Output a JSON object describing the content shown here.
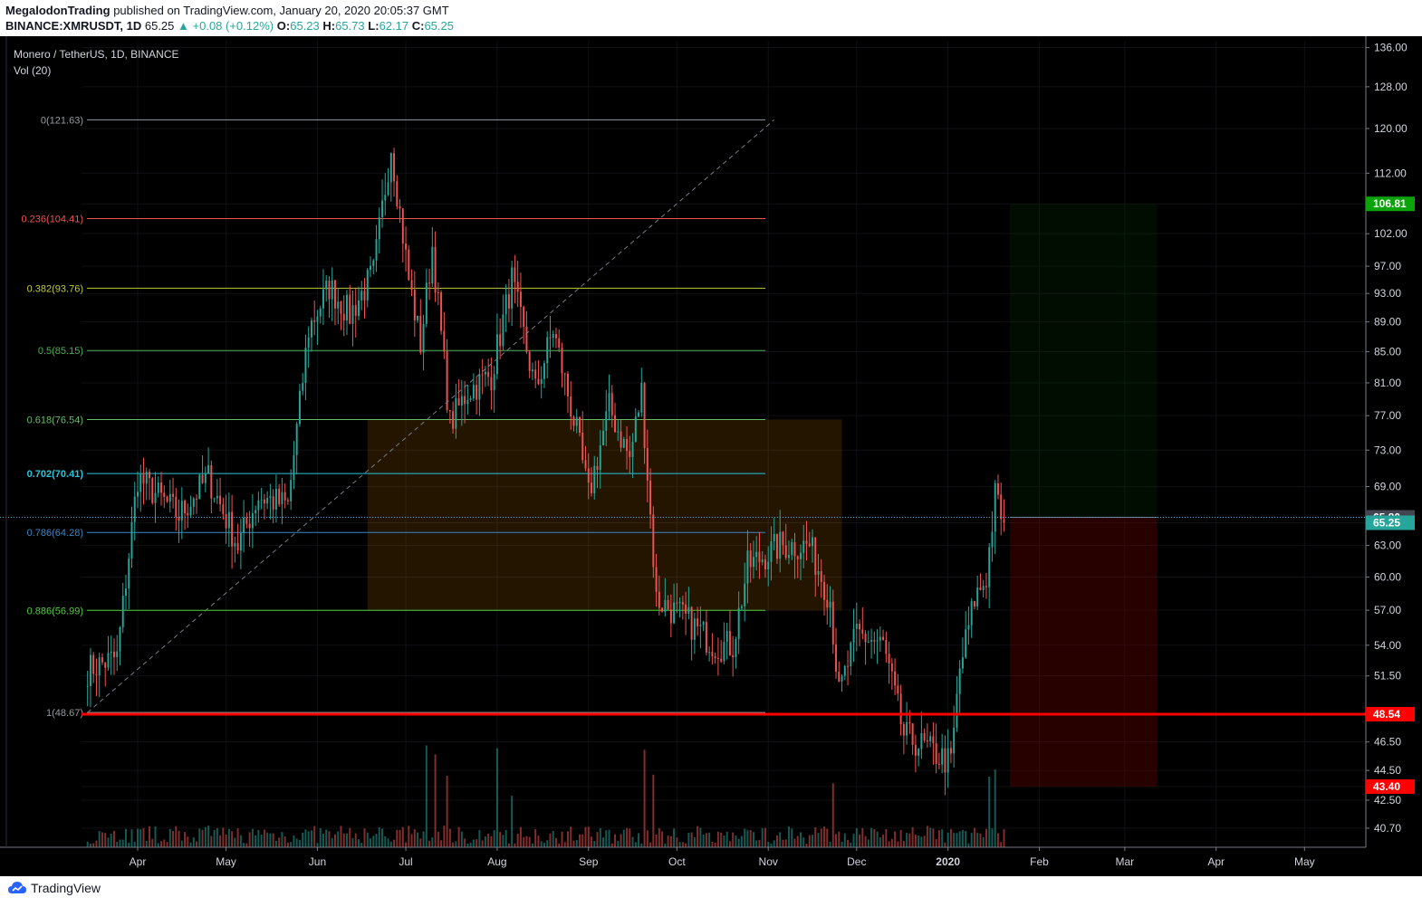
{
  "header": {
    "author": "MegalodonTrading",
    "published_text": "published on TradingView.com, January 20, 2020 20:05:37 GMT",
    "symbol": "BINANCE:XMRUSDT, 1D",
    "price": "65.25",
    "change": "▲ +0.08 (+0.12%)",
    "o_label": "O:",
    "o_value": "65.23",
    "h_label": "H:",
    "h_value": "65.73",
    "l_label": "L:",
    "l_value": "62.17",
    "c_label": "C:",
    "c_value": "65.25"
  },
  "legend": {
    "title": "Monero / TetherUS, 1D, BINANCE",
    "volume": "Vol (20)"
  },
  "footer": {
    "brand": "TradingView"
  },
  "colors": {
    "up": "#26a69a",
    "down": "#ef5350",
    "background": "#000000",
    "support_line": "#ff0000",
    "target_label": "#0aa30a",
    "stop_label": "#ff0000"
  },
  "chart_data": {
    "type": "candlestick",
    "y_scale": "log",
    "ylim": [
      39.5,
      138
    ],
    "y_ticks": [
      "136.00",
      "128.00",
      "120.00",
      "112.00",
      "106.81",
      "102.00",
      "97.00",
      "93.00",
      "89.00",
      "85.00",
      "81.00",
      "77.00",
      "73.00",
      "69.00",
      "65.80",
      "65.25",
      "63.00",
      "60.00",
      "57.00",
      "54.00",
      "51.50",
      "48.54",
      "46.50",
      "44.50",
      "43.40",
      "42.50",
      "40.70"
    ],
    "x_ticks": [
      "Apr",
      "May",
      "Jun",
      "Jul",
      "Aug",
      "Sep",
      "Oct",
      "Nov",
      "Dec",
      "2020",
      "Feb",
      "Mar",
      "Apr",
      "May"
    ],
    "price_labels": [
      {
        "value": 106.81,
        "text": "106.81",
        "color": "#0aa30a"
      },
      {
        "value": 65.8,
        "text": "65.80",
        "color": "#434651"
      },
      {
        "value": 65.25,
        "text": "65.25",
        "color": "#26a69a"
      },
      {
        "value": 48.54,
        "text": "48.54",
        "color": "#ff0000"
      },
      {
        "value": 43.4,
        "text": "43.40",
        "color": "#ff0000"
      }
    ],
    "fib_levels": [
      {
        "ratio": "0",
        "value": 121.63,
        "text": "0(121.63)",
        "color": "#9598a1"
      },
      {
        "ratio": "0.236",
        "value": 104.41,
        "text": "0.236(104.41)",
        "color": "#ef5350"
      },
      {
        "ratio": "0.382",
        "value": 93.76,
        "text": "0.382(93.76)",
        "color": "#c0ca33"
      },
      {
        "ratio": "0.5",
        "value": 85.15,
        "text": "0.5(85.15)",
        "color": "#4caf50"
      },
      {
        "ratio": "0.618",
        "value": 76.54,
        "text": "0.618(76.54)",
        "color": "#66bb6a"
      },
      {
        "ratio": "0.702",
        "value": 70.41,
        "text": "0.702(70.41)",
        "color": "#26c6da"
      },
      {
        "ratio": "0.786",
        "value": 64.28,
        "text": "0.786(64.28)",
        "color": "#3d85c6"
      },
      {
        "ratio": "0.886",
        "value": 56.99,
        "text": "0.886(56.99)",
        "color": "#4cd137"
      },
      {
        "ratio": "1",
        "value": 48.67,
        "text": "1(48.67)",
        "color": "#9598a1"
      }
    ],
    "support_level": 48.54,
    "zone": {
      "from_date": "2019-06-18",
      "to_date": "2019-11-26",
      "low": 56.99,
      "high": 76.54
    },
    "position": {
      "from_date": "2020-01-22",
      "to_date": "2020-03-12",
      "entry": 65.8,
      "target": 106.81,
      "stop": 43.4
    },
    "trendline": {
      "from_date": "2019-03-15",
      "from_value": 48.67,
      "to_date": "2019-11-03",
      "to_value": 121.63
    },
    "ohlc_anchors": [
      [
        "2019-03-15",
        52
      ],
      [
        "2019-03-25",
        53
      ],
      [
        "2019-04-01",
        70
      ],
      [
        "2019-04-08",
        68
      ],
      [
        "2019-04-15",
        66
      ],
      [
        "2019-04-25",
        70
      ],
      [
        "2019-05-05",
        63
      ],
      [
        "2019-05-12",
        68
      ],
      [
        "2019-05-22",
        67
      ],
      [
        "2019-05-29",
        88
      ],
      [
        "2019-06-05",
        94
      ],
      [
        "2019-06-12",
        90
      ],
      [
        "2019-06-20",
        96
      ],
      [
        "2019-06-26",
        117
      ],
      [
        "2019-07-02",
        95
      ],
      [
        "2019-07-06",
        86
      ],
      [
        "2019-07-10",
        100
      ],
      [
        "2019-07-16",
        76
      ],
      [
        "2019-07-22",
        80
      ],
      [
        "2019-07-30",
        82
      ],
      [
        "2019-08-06",
        95
      ],
      [
        "2019-08-14",
        80
      ],
      [
        "2019-08-20",
        88
      ],
      [
        "2019-08-28",
        75
      ],
      [
        "2019-09-01",
        68
      ],
      [
        "2019-09-08",
        78
      ],
      [
        "2019-09-15",
        72
      ],
      [
        "2019-09-19",
        80
      ],
      [
        "2019-09-24",
        58
      ],
      [
        "2019-10-05",
        56
      ],
      [
        "2019-10-14",
        54
      ],
      [
        "2019-10-20",
        54
      ],
      [
        "2019-10-25",
        61
      ],
      [
        "2019-11-05",
        63
      ],
      [
        "2019-11-15",
        63
      ],
      [
        "2019-11-22",
        58
      ],
      [
        "2019-11-25",
        50
      ],
      [
        "2019-12-01",
        55
      ],
      [
        "2019-12-10",
        54
      ],
      [
        "2019-12-17",
        47
      ],
      [
        "2019-12-25",
        46
      ],
      [
        "2020-01-02",
        45
      ],
      [
        "2020-01-05",
        52
      ],
      [
        "2020-01-10",
        58
      ],
      [
        "2020-01-14",
        60
      ],
      [
        "2020-01-17",
        68
      ],
      [
        "2020-01-20",
        65.25
      ]
    ]
  }
}
